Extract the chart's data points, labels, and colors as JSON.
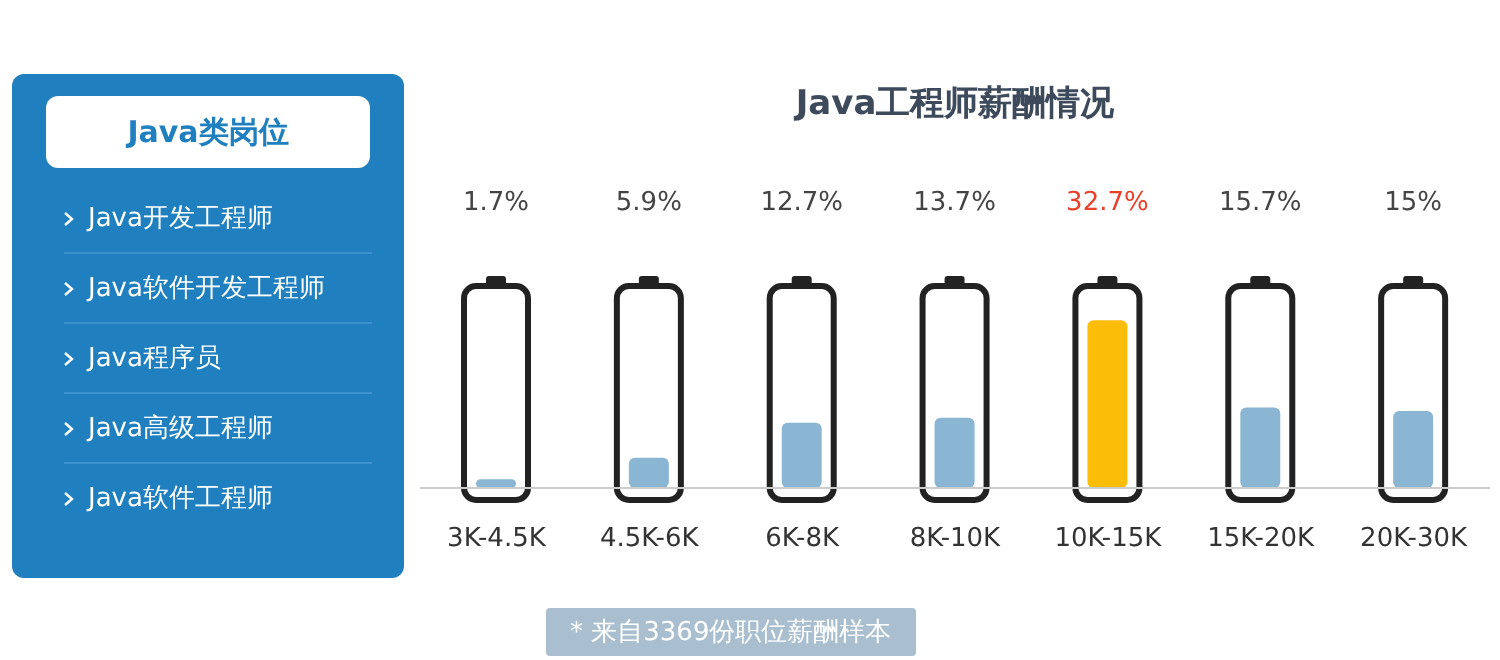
{
  "chart_data": [
    {
      "type": "other",
      "title": "Java类岗位",
      "annotations": [
        "Java开发工程师",
        "Java软件开发工程师",
        "Java程序员",
        "Java高级工程师",
        "Java软件工程师"
      ]
    },
    {
      "type": "bar",
      "title": "Java工程师薪酬情况",
      "categories": [
        "3K-4.5K",
        "4.5K-6K",
        "6K-8K",
        "8K-10K",
        "10K-15K",
        "15K-20K",
        "20K-30K"
      ],
      "values": [
        1.7,
        5.9,
        12.7,
        13.7,
        32.7,
        15.7,
        15
      ],
      "colors": [
        "#8ab6d3",
        "#8ab6d3",
        "#8ab6d3",
        "#8ab6d3",
        "#fbbd08",
        "#8ab6d3",
        "#8ab6d3"
      ],
      "value_labels": [
        "1.7%",
        "5.9%",
        "12.7%",
        "13.7%",
        "32.7%",
        "15.7%",
        "15%"
      ],
      "annotations": [
        "* 来自3369份职位薪酬样本"
      ]
    }
  ]
}
